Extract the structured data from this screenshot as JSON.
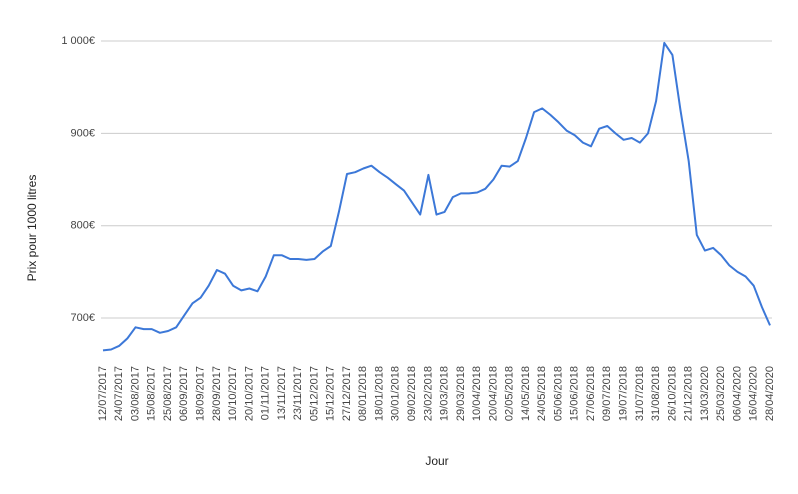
{
  "chart_data": {
    "type": "line",
    "x_label": "Jour",
    "y_label": "Prix pour 1000 litres",
    "categories": [
      "12/07/2017",
      null,
      "24/07/2017",
      null,
      "03/08/2017",
      null,
      "15/08/2017",
      null,
      "25/08/2017",
      null,
      "06/09/2017",
      null,
      "18/09/2017",
      null,
      "28/09/2017",
      null,
      "10/10/2017",
      null,
      "20/10/2017",
      null,
      "01/11/2017",
      null,
      "13/11/2017",
      null,
      "23/11/2017",
      null,
      "05/12/2017",
      null,
      "15/12/2017",
      null,
      "27/12/2017",
      null,
      "08/01/2018",
      null,
      "18/01/2018",
      null,
      "30/01/2018",
      null,
      "09/02/2018",
      null,
      "23/02/2018",
      null,
      "19/03/2018",
      null,
      "29/03/2018",
      null,
      "10/04/2018",
      null,
      "20/04/2018",
      null,
      "02/05/2018",
      null,
      "14/05/2018",
      null,
      "24/05/2018",
      null,
      "05/06/2018",
      null,
      "15/06/2018",
      null,
      "27/06/2018",
      null,
      "09/07/2018",
      null,
      "19/07/2018",
      null,
      "31/07/2018",
      null,
      "31/08/2018",
      null,
      "26/10/2018",
      null,
      "21/12/2018",
      null,
      "13/03/2020",
      null,
      "25/03/2020",
      null,
      "06/04/2020",
      null,
      "16/04/2020",
      null,
      "28/04/2020"
    ],
    "values": [
      665,
      666,
      670,
      678,
      690,
      688,
      688,
      684,
      686,
      690,
      703,
      716,
      722,
      735,
      752,
      748,
      735,
      730,
      732,
      729,
      745,
      768,
      768,
      764,
      764,
      763,
      764,
      772,
      778,
      815,
      856,
      858,
      862,
      865,
      858,
      852,
      845,
      838,
      825,
      812,
      855,
      812,
      815,
      831,
      835,
      835,
      836,
      840,
      850,
      865,
      864,
      870,
      895,
      923,
      927,
      920,
      912,
      903,
      898,
      890,
      886,
      905,
      908,
      900,
      893,
      895,
      890,
      900,
      935,
      998,
      985,
      925,
      870,
      790,
      773,
      776,
      768,
      757,
      750,
      745,
      735,
      712,
      692
    ],
    "color": "#3c78d8",
    "ylim": [
      660,
      1005
    ],
    "yticks": [
      {
        "value": 700,
        "label": "700€"
      },
      {
        "value": 800,
        "label": "800€"
      },
      {
        "value": 900,
        "label": "900€"
      },
      {
        "value": 1000,
        "label": "1 000€"
      }
    ],
    "grid": true
  }
}
